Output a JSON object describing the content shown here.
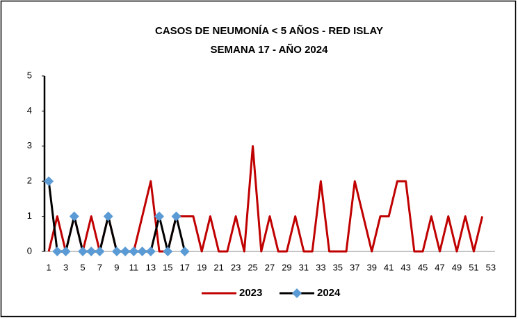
{
  "chart_data": {
    "type": "line",
    "title": "CASOS DE NEUMONÍA < 5 AÑOS - RED ISLAY",
    "subtitle": "SEMANA  17 -  AÑO 2024",
    "categories": [
      1,
      null,
      3,
      null,
      5,
      null,
      7,
      null,
      9,
      null,
      11,
      null,
      13,
      null,
      15,
      null,
      17,
      null,
      19,
      null,
      21,
      null,
      23,
      null,
      25,
      null,
      27,
      null,
      29,
      null,
      31,
      null,
      33,
      null,
      35,
      null,
      37,
      null,
      39,
      null,
      41,
      null,
      43,
      null,
      45,
      null,
      47,
      null,
      49,
      null,
      51,
      null,
      53
    ],
    "series": [
      {
        "name": "2023",
        "color": "#c00000",
        "values": [
          0,
          1,
          0,
          1,
          0,
          1,
          0,
          1,
          0,
          0,
          0,
          1,
          2,
          0,
          0,
          1,
          1,
          1,
          0,
          1,
          0,
          0,
          1,
          0,
          3,
          0,
          1,
          0,
          0,
          1,
          0,
          0,
          2,
          0,
          0,
          0,
          2,
          1,
          0,
          1,
          1,
          2,
          2,
          0,
          0,
          1,
          0,
          1,
          0,
          1,
          0,
          1,
          null
        ]
      },
      {
        "name": "2024",
        "color": "#000000",
        "marker_color": "#5b9bd5",
        "values": [
          2,
          0,
          0,
          1,
          0,
          0,
          0,
          1,
          0,
          0,
          0,
          0,
          0,
          1,
          0,
          1,
          0,
          null,
          null,
          null,
          null,
          null,
          null,
          null,
          null,
          null,
          null,
          null,
          null,
          null,
          null,
          null,
          null,
          null,
          null,
          null,
          null,
          null,
          null,
          null,
          null,
          null,
          null,
          null,
          null,
          null,
          null,
          null,
          null,
          null,
          null,
          null,
          null
        ]
      }
    ],
    "ylim": [
      0,
      5
    ],
    "yticks": [
      0,
      1,
      2,
      3,
      4,
      5
    ],
    "legend": "bottom"
  }
}
